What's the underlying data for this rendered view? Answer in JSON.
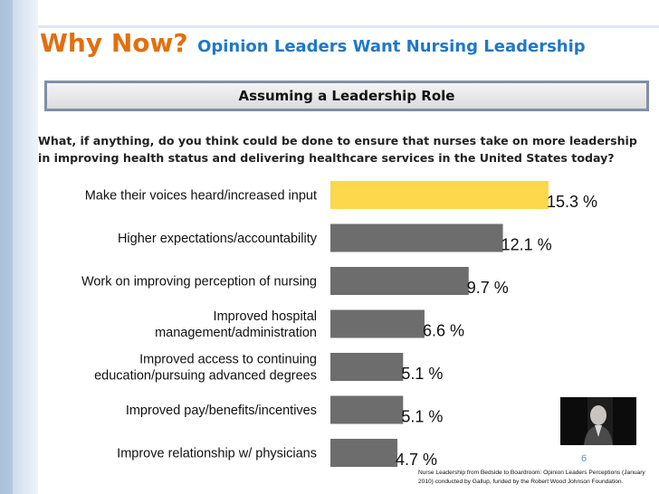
{
  "header": {
    "title_main": "Why Now?",
    "title_sub": "Opinion Leaders Want Nursing Leadership",
    "banner": "Assuming a Leadership Role",
    "question": "What, if anything, do you think could be done to ensure that nurses take on more leadership in improving health status and delivering healthcare services in the United States today?"
  },
  "chart_data": {
    "type": "bar",
    "orientation": "horizontal",
    "title": "Assuming a Leadership Role",
    "categories": [
      [
        "Make their voices heard/increased input"
      ],
      [
        "Higher expectations/accountability"
      ],
      [
        "Work on improving perception of nursing"
      ],
      [
        "Improved hospital",
        "management/administration"
      ],
      [
        "Improved access to continuing",
        "education/pursuing advanced degrees"
      ],
      [
        "Improved pay/benefits/incentives"
      ],
      [
        "Improve relationship w/ physicians"
      ]
    ],
    "values": [
      15.3,
      12.1,
      9.7,
      6.6,
      5.1,
      5.1,
      4.7
    ],
    "value_labels": [
      "15.3",
      "12.1",
      "9.7",
      "6.6",
      "5.1",
      "5.1",
      "4.7"
    ],
    "unit": "%",
    "highlight_color": "#fdd74c",
    "bar_color": "#6d6d6d",
    "xlim": [
      0,
      20
    ]
  },
  "footer": {
    "slide_number": "6",
    "source": "Nurse Leadership from Bedside to Boardroom: Opinion Leaders Perceptions (January 2010) conducted by Gallup, funded by the Robert Wood Johnson Foundation."
  }
}
